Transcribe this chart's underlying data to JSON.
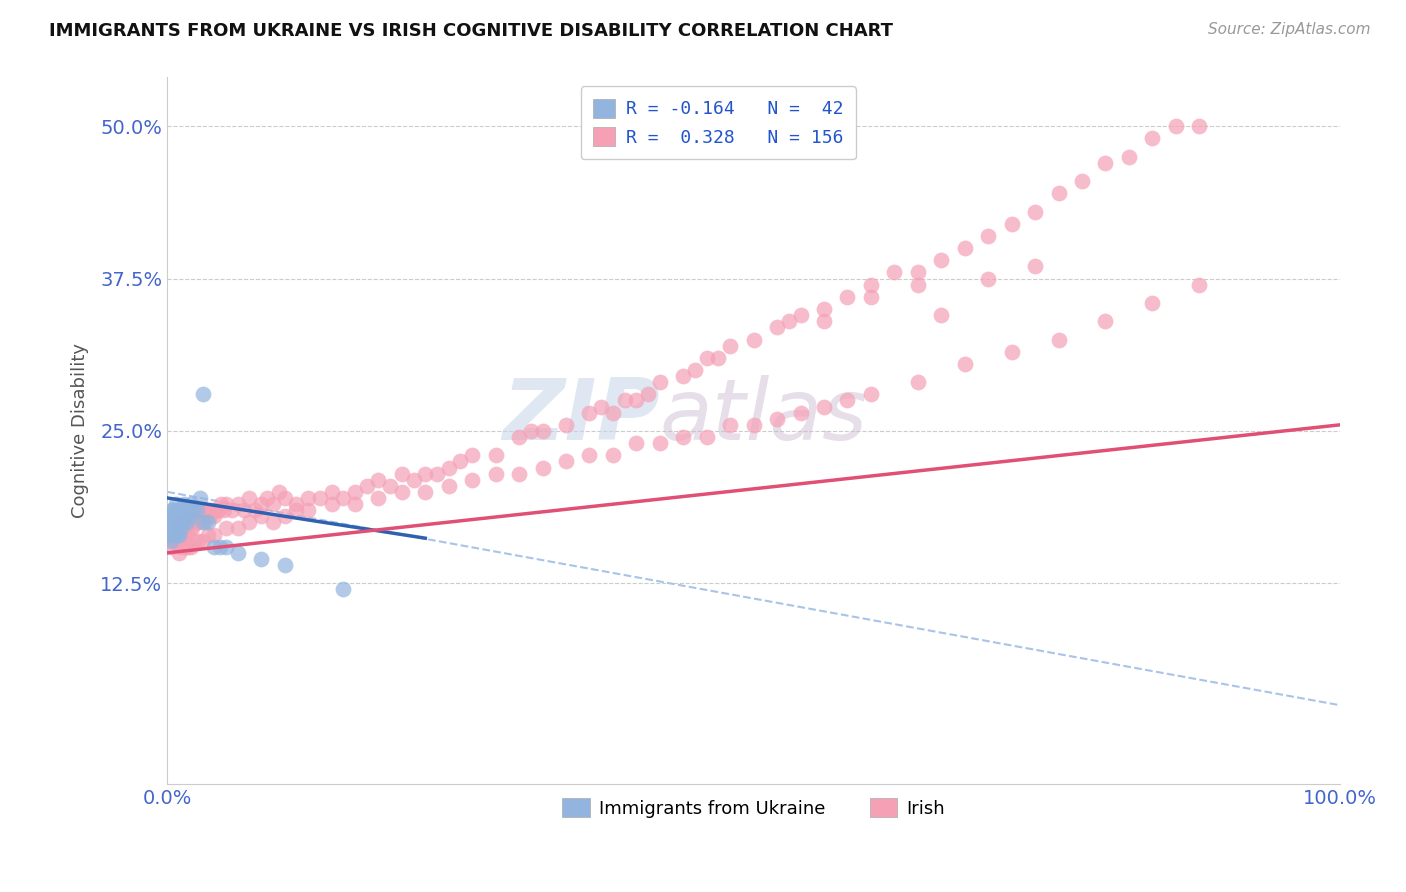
{
  "title": "IMMIGRANTS FROM UKRAINE VS IRISH COGNITIVE DISABILITY CORRELATION CHART",
  "source": "Source: ZipAtlas.com",
  "ylabel": "Cognitive Disability",
  "xlim": [
    0.0,
    1.0
  ],
  "ylim": [
    -0.04,
    0.54
  ],
  "yticks": [
    0.125,
    0.25,
    0.375,
    0.5
  ],
  "ytick_labels": [
    "12.5%",
    "25.0%",
    "37.5%",
    "50.0%"
  ],
  "xticks": [
    0.0,
    1.0
  ],
  "xtick_labels": [
    "0.0%",
    "100.0%"
  ],
  "legend_R_ukraine": "-0.164",
  "legend_N_ukraine": "42",
  "legend_R_irish": "0.328",
  "legend_N_irish": "156",
  "ukraine_color": "#92b4de",
  "irish_color": "#f5a0b5",
  "ukraine_line_color": "#3060b0",
  "irish_line_color": "#e05075",
  "dashed_line_color": "#a8c4e8",
  "watermark_zip": "ZIP",
  "watermark_atlas": "atlas",
  "background_color": "#ffffff",
  "ukraine_scatter_x": [
    0.001,
    0.002,
    0.002,
    0.003,
    0.003,
    0.004,
    0.004,
    0.005,
    0.005,
    0.006,
    0.006,
    0.007,
    0.007,
    0.008,
    0.008,
    0.009,
    0.01,
    0.01,
    0.011,
    0.012,
    0.012,
    0.013,
    0.014,
    0.015,
    0.016,
    0.017,
    0.018,
    0.019,
    0.02,
    0.022,
    0.025,
    0.028,
    0.03,
    0.035,
    0.04,
    0.045,
    0.05,
    0.06,
    0.08,
    0.1,
    0.15,
    0.03
  ],
  "ukraine_scatter_y": [
    0.175,
    0.165,
    0.18,
    0.16,
    0.175,
    0.185,
    0.17,
    0.175,
    0.185,
    0.165,
    0.18,
    0.175,
    0.19,
    0.165,
    0.18,
    0.175,
    0.165,
    0.185,
    0.175,
    0.17,
    0.185,
    0.175,
    0.19,
    0.18,
    0.185,
    0.175,
    0.185,
    0.18,
    0.19,
    0.185,
    0.185,
    0.195,
    0.175,
    0.175,
    0.155,
    0.155,
    0.155,
    0.15,
    0.145,
    0.14,
    0.12,
    0.28
  ],
  "irish_scatter_x": [
    0.003,
    0.005,
    0.006,
    0.007,
    0.008,
    0.009,
    0.01,
    0.011,
    0.012,
    0.013,
    0.014,
    0.015,
    0.016,
    0.017,
    0.018,
    0.019,
    0.02,
    0.021,
    0.022,
    0.023,
    0.024,
    0.025,
    0.026,
    0.027,
    0.028,
    0.029,
    0.03,
    0.032,
    0.034,
    0.036,
    0.038,
    0.04,
    0.042,
    0.044,
    0.046,
    0.048,
    0.05,
    0.055,
    0.06,
    0.065,
    0.07,
    0.075,
    0.08,
    0.085,
    0.09,
    0.095,
    0.1,
    0.11,
    0.12,
    0.13,
    0.14,
    0.15,
    0.16,
    0.17,
    0.18,
    0.19,
    0.2,
    0.21,
    0.22,
    0.23,
    0.24,
    0.25,
    0.26,
    0.28,
    0.3,
    0.31,
    0.32,
    0.34,
    0.36,
    0.37,
    0.38,
    0.39,
    0.4,
    0.41,
    0.42,
    0.44,
    0.45,
    0.46,
    0.47,
    0.48,
    0.5,
    0.52,
    0.53,
    0.54,
    0.56,
    0.58,
    0.6,
    0.62,
    0.64,
    0.66,
    0.68,
    0.7,
    0.72,
    0.74,
    0.76,
    0.78,
    0.8,
    0.82,
    0.84,
    0.86,
    0.88,
    0.01,
    0.012,
    0.015,
    0.018,
    0.02,
    0.023,
    0.026,
    0.03,
    0.035,
    0.04,
    0.05,
    0.06,
    0.07,
    0.08,
    0.09,
    0.1,
    0.11,
    0.12,
    0.14,
    0.16,
    0.18,
    0.2,
    0.22,
    0.24,
    0.26,
    0.28,
    0.3,
    0.32,
    0.34,
    0.36,
    0.38,
    0.4,
    0.42,
    0.44,
    0.46,
    0.48,
    0.5,
    0.52,
    0.54,
    0.56,
    0.58,
    0.6,
    0.64,
    0.68,
    0.72,
    0.76,
    0.8,
    0.84,
    0.88,
    0.66,
    0.7,
    0.74,
    0.6,
    0.64,
    0.56
  ],
  "irish_scatter_y": [
    0.155,
    0.165,
    0.16,
    0.175,
    0.16,
    0.17,
    0.165,
    0.175,
    0.165,
    0.175,
    0.16,
    0.17,
    0.175,
    0.165,
    0.175,
    0.17,
    0.18,
    0.17,
    0.18,
    0.175,
    0.185,
    0.175,
    0.185,
    0.175,
    0.185,
    0.18,
    0.185,
    0.175,
    0.185,
    0.18,
    0.185,
    0.18,
    0.185,
    0.185,
    0.19,
    0.185,
    0.19,
    0.185,
    0.19,
    0.185,
    0.195,
    0.185,
    0.19,
    0.195,
    0.19,
    0.2,
    0.195,
    0.19,
    0.195,
    0.195,
    0.2,
    0.195,
    0.2,
    0.205,
    0.21,
    0.205,
    0.215,
    0.21,
    0.215,
    0.215,
    0.22,
    0.225,
    0.23,
    0.23,
    0.245,
    0.25,
    0.25,
    0.255,
    0.265,
    0.27,
    0.265,
    0.275,
    0.275,
    0.28,
    0.29,
    0.295,
    0.3,
    0.31,
    0.31,
    0.32,
    0.325,
    0.335,
    0.34,
    0.345,
    0.35,
    0.36,
    0.37,
    0.38,
    0.38,
    0.39,
    0.4,
    0.41,
    0.42,
    0.43,
    0.445,
    0.455,
    0.47,
    0.475,
    0.49,
    0.5,
    0.5,
    0.15,
    0.155,
    0.155,
    0.155,
    0.155,
    0.16,
    0.16,
    0.16,
    0.165,
    0.165,
    0.17,
    0.17,
    0.175,
    0.18,
    0.175,
    0.18,
    0.185,
    0.185,
    0.19,
    0.19,
    0.195,
    0.2,
    0.2,
    0.205,
    0.21,
    0.215,
    0.215,
    0.22,
    0.225,
    0.23,
    0.23,
    0.24,
    0.24,
    0.245,
    0.245,
    0.255,
    0.255,
    0.26,
    0.265,
    0.27,
    0.275,
    0.28,
    0.29,
    0.305,
    0.315,
    0.325,
    0.34,
    0.355,
    0.37,
    0.345,
    0.375,
    0.385,
    0.36,
    0.37,
    0.34
  ],
  "ukraine_trend_x": [
    0.0,
    0.22
  ],
  "ukraine_trend_y": [
    0.195,
    0.162
  ],
  "irish_trend_x": [
    0.0,
    1.0
  ],
  "irish_trend_y": [
    0.15,
    0.255
  ],
  "dashed_trend_x": [
    0.0,
    1.0
  ],
  "dashed_trend_y": [
    0.2,
    0.025
  ]
}
